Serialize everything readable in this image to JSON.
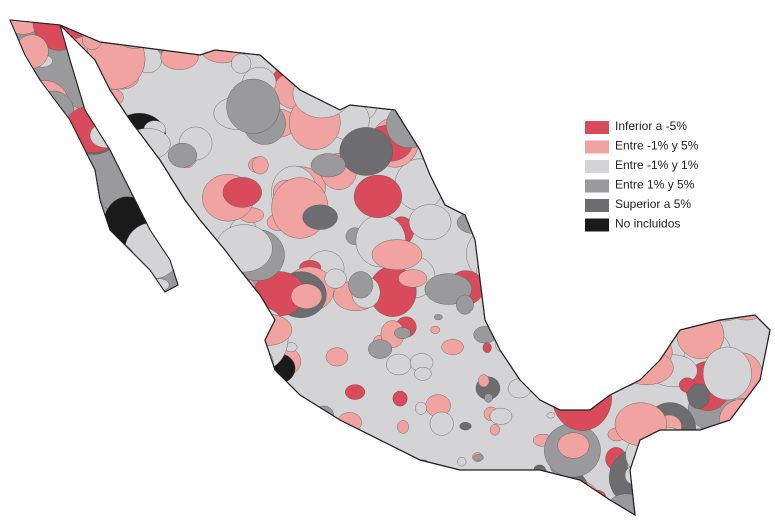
{
  "legend": {
    "items": [
      {
        "label": "Inferior a -5%",
        "color": "#d94a5a"
      },
      {
        "label": "Entre -1% y 5%",
        "color": "#f0a3a0"
      },
      {
        "label": "Entre -1% y 1%",
        "color": "#d4d4d6"
      },
      {
        "label": "Entre 1% y 5%",
        "color": "#9a9a9c"
      },
      {
        "label": "Superior a 5%",
        "color": "#6d6d70"
      },
      {
        "label": "No incluidos",
        "color": "#1a1a1a"
      }
    ]
  }
}
